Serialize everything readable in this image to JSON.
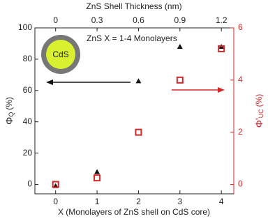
{
  "chart_data": {
    "type": "scatter",
    "xlabel": "X (Monolayers of ZnS shell on CdS core)",
    "x2label": "ZnS Shell Thickness (nm)",
    "ylabel": "Φ",
    "ylabel_sub": "Q",
    "ylabel_unit": "(%)",
    "y2label": "Φ'",
    "y2label_sub": "UC",
    "y2label_unit": "(%)",
    "annotation": "ZnS X = 1-4 Monolayers",
    "core_label": "CdS",
    "xlim": [
      -0.5,
      4.3
    ],
    "xticks": [
      0,
      1,
      2,
      3,
      4
    ],
    "x2ticks": [
      {
        "value": 0,
        "label": "0"
      },
      {
        "value": 1,
        "label": "0.3"
      },
      {
        "value": 2,
        "label": "0.6"
      },
      {
        "value": 3,
        "label": "0.9"
      },
      {
        "value": 4,
        "label": "1.2"
      }
    ],
    "ylim": [
      -6,
      100
    ],
    "yticks": [
      0,
      20,
      40,
      60,
      80,
      100
    ],
    "y2lim": [
      -0.36,
      6
    ],
    "y2ticks": [
      0,
      2,
      4,
      6
    ],
    "series": [
      {
        "marker": "triangle",
        "color": "#111111",
        "x": [
          0,
          1,
          2,
          3,
          4
        ],
        "values": [
          -1,
          8,
          66,
          88,
          88
        ]
      },
      {
        "marker": "square",
        "color": "#d62728",
        "axis": "y2",
        "x": [
          0,
          1,
          2,
          3,
          4
        ],
        "values": [
          0,
          0.25,
          2,
          4,
          5.2
        ]
      }
    ]
  }
}
